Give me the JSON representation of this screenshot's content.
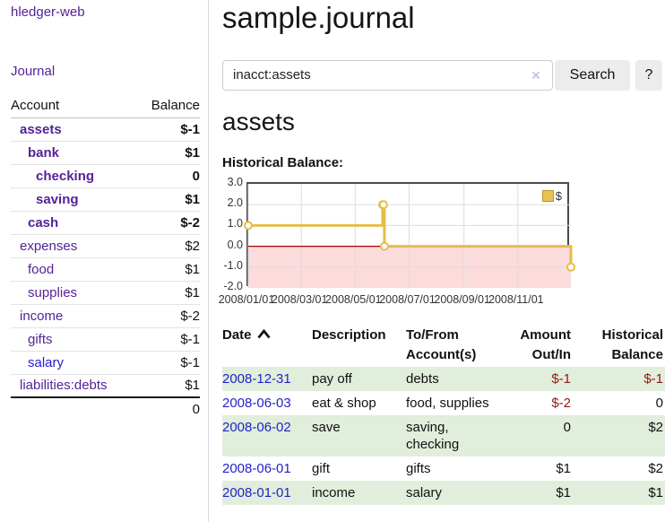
{
  "colors": {
    "link_purple": "#552299",
    "link_blue": "#2222cc",
    "negative_strong": "#8b1a1a",
    "negative_faded": "#c4807f",
    "row_shade_green": "#e1eedb",
    "chart_line_gold": "#e6bd4a",
    "chart_negative_fill": "#fbdbdb",
    "chart_zero_line": "#a40000",
    "chart_grid": "#dddddd"
  },
  "sidebar": {
    "app_title": "hledger-web",
    "nav": {
      "journal": "Journal"
    },
    "table": {
      "account_header": "Account",
      "balance_header": "Balance"
    },
    "accounts": [
      {
        "name": "assets",
        "balance": "$-1",
        "indent": 1,
        "bold": true
      },
      {
        "name": "bank",
        "balance": "$1",
        "indent": 2,
        "bold": true
      },
      {
        "name": "checking",
        "balance": "0",
        "indent": 3,
        "bold": true
      },
      {
        "name": "saving",
        "balance": "$1",
        "indent": 3,
        "bold": true
      },
      {
        "name": "cash",
        "balance": "$-2",
        "indent": 2,
        "bold": true
      },
      {
        "name": "expenses",
        "balance": "$2",
        "indent": 1
      },
      {
        "name": "food",
        "balance": "$1",
        "indent": 2
      },
      {
        "name": "supplies",
        "balance": "$1",
        "indent": 2
      },
      {
        "name": "income",
        "balance": "$-2",
        "indent": 1
      },
      {
        "name": "gifts",
        "balance": "$-1",
        "indent": 2
      },
      {
        "name": "salary",
        "balance": "$-1",
        "indent": 2,
        "blue": true
      },
      {
        "name": "liabilities:debts",
        "balance": "$1",
        "indent": 1,
        "last": true
      }
    ],
    "total": "0"
  },
  "main": {
    "title": "sample.journal",
    "search": {
      "value": "inacct:assets",
      "clear": "×",
      "search_button": "Search",
      "help_button": "?"
    },
    "account_heading": "assets",
    "section_label": "Historical Balance:"
  },
  "chart_data": {
    "type": "line",
    "title": "Historical Balance:",
    "step": true,
    "legend": "$",
    "legend_position": "top-right",
    "grid": true,
    "ylim": [
      -2.0,
      3.0
    ],
    "yticks": [
      "3.0",
      "2.0",
      "1.0",
      "0.0",
      "-1.0",
      "-2.0"
    ],
    "xticks": [
      "2008/01/01",
      "2008/03/01",
      "2008/05/01",
      "2008/07/01",
      "2008/09/01",
      "2008/11/01"
    ],
    "xrange": [
      "2008-01-01",
      "2008-12-31"
    ],
    "series": [
      {
        "name": "$",
        "points": [
          [
            "2008-01-01",
            1.0
          ],
          [
            "2008-06-01",
            2.0
          ],
          [
            "2008-06-02",
            2.0
          ],
          [
            "2008-06-03",
            0.0
          ],
          [
            "2008-12-31",
            -1.0
          ]
        ]
      }
    ]
  },
  "register": {
    "columns": [
      {
        "label": "Date",
        "align": "left",
        "sorted": "asc"
      },
      {
        "label": "Description",
        "align": "left"
      },
      {
        "label": "To/From Account(s)",
        "align": "left"
      },
      {
        "label": "Amount Out/In",
        "align": "right"
      },
      {
        "label": "Historical Balance",
        "align": "right"
      }
    ],
    "rows": [
      {
        "date": "2008-12-31",
        "description": "pay off",
        "accounts": "debts",
        "amount": "$-1",
        "balance": "$-1",
        "shaded": true
      },
      {
        "date": "2008-06-03",
        "description": "eat & shop",
        "accounts": "food, supplies",
        "amount": "$-2",
        "balance": "0"
      },
      {
        "date": "2008-06-02",
        "description": "save",
        "accounts": "saving, checking",
        "amount": "0",
        "balance": "$2",
        "shaded": true
      },
      {
        "date": "2008-06-01",
        "description": "gift",
        "accounts": "gifts",
        "amount": "$1",
        "balance": "$2"
      },
      {
        "date": "2008-01-01",
        "description": "income",
        "accounts": "salary",
        "amount": "$1",
        "balance": "$1",
        "shaded": true
      }
    ]
  }
}
